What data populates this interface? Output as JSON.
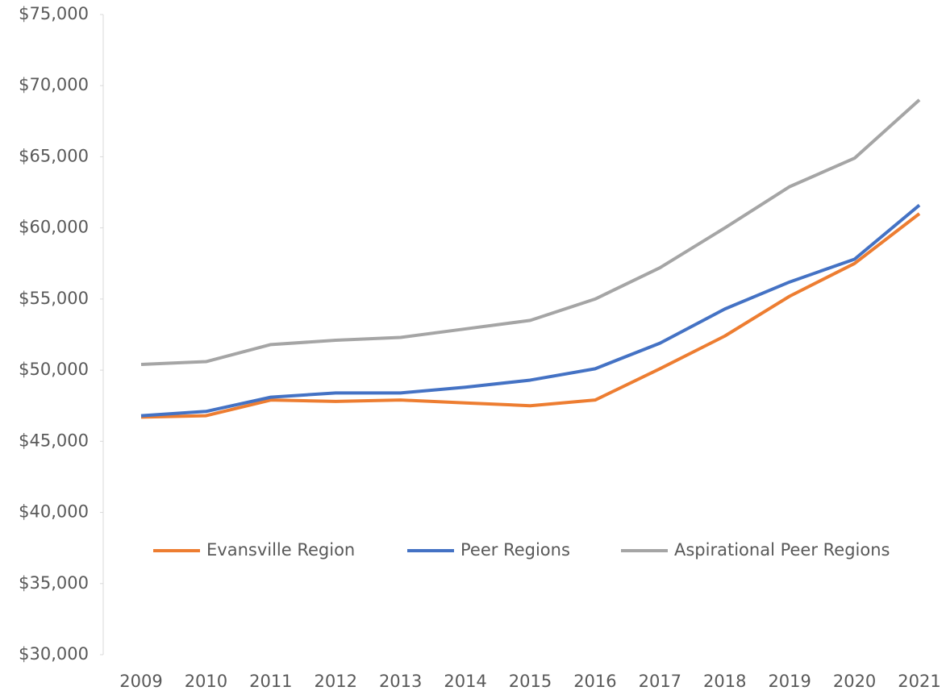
{
  "chart_data": {
    "type": "line",
    "x": [
      "2009",
      "2010",
      "2011",
      "2012",
      "2013",
      "2014",
      "2015",
      "2016",
      "2017",
      "2018",
      "2019",
      "2020",
      "2021"
    ],
    "series": [
      {
        "name": "Evansville Region",
        "color": "#ed7d31",
        "values": [
          46700,
          46800,
          47900,
          47800,
          47900,
          47700,
          47500,
          47900,
          50100,
          52400,
          55200,
          57500,
          61000
        ]
      },
      {
        "name": "Peer Regions",
        "color": "#4472c4",
        "values": [
          46800,
          47100,
          48100,
          48400,
          48400,
          48800,
          49300,
          50100,
          51900,
          54300,
          56200,
          57800,
          61600
        ]
      },
      {
        "name": "Aspirational Peer Regions",
        "color": "#a5a5a5",
        "values": [
          50400,
          50600,
          51800,
          52100,
          52300,
          52900,
          53500,
          55000,
          57200,
          60000,
          62900,
          64900,
          69000
        ]
      }
    ],
    "ylim": [
      30000,
      75000
    ],
    "yticks": [
      {
        "value": 30000,
        "label": "$30,000"
      },
      {
        "value": 35000,
        "label": "$35,000"
      },
      {
        "value": 40000,
        "label": "$40,000"
      },
      {
        "value": 45000,
        "label": "$45,000"
      },
      {
        "value": 50000,
        "label": "$50,000"
      },
      {
        "value": 55000,
        "label": "$55,000"
      },
      {
        "value": 60000,
        "label": "$60,000"
      },
      {
        "value": 65000,
        "label": "$65,000"
      },
      {
        "value": 70000,
        "label": "$70,000"
      },
      {
        "value": 75000,
        "label": "$75,000"
      }
    ],
    "grid": false,
    "legend": "inside-bottom"
  }
}
